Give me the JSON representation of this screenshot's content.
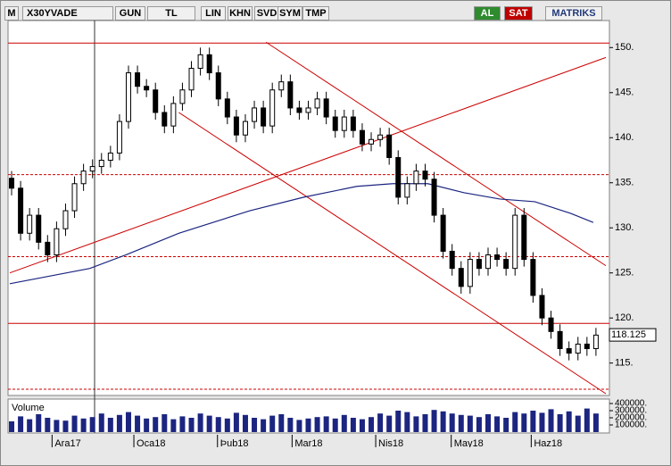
{
  "toolbar": {
    "logo": "M",
    "symbol": "X30YVADE",
    "period": "GUN",
    "currency": "TL",
    "buttons": [
      "LIN",
      "KHN",
      "SVD",
      "SYM",
      "TMP"
    ],
    "buy": "AL",
    "sell": "SAT",
    "brand": "MATRIKS"
  },
  "chart_data": {
    "type": "candlestick",
    "x": [
      0,
      1,
      2,
      3,
      4,
      5,
      6,
      7,
      8,
      9,
      10,
      11,
      12,
      13,
      14,
      15,
      16,
      17,
      18,
      19,
      20,
      21,
      22,
      23,
      24,
      25,
      26,
      27,
      28,
      29,
      30,
      31,
      32,
      33,
      34,
      35,
      36,
      37,
      38,
      39,
      40,
      41,
      42,
      43,
      44,
      45,
      46,
      47,
      48,
      49,
      50,
      51,
      52,
      53,
      54,
      55,
      56,
      57,
      58,
      59,
      60,
      61,
      62,
      63,
      64,
      65
    ],
    "open": [
      135.5,
      134.4,
      129.4,
      131.4,
      128.4,
      127.0,
      129.9,
      131.9,
      134.9,
      136.3,
      136.8,
      137.5,
      138.3,
      141.8,
      147.2,
      145.7,
      145.3,
      142.8,
      141.3,
      143.8,
      145.3,
      147.7,
      149.2,
      147.2,
      144.3,
      142.3,
      140.3,
      141.8,
      143.3,
      141.3,
      145.3,
      146.2,
      143.3,
      142.8,
      143.3,
      144.3,
      142.3,
      140.8,
      142.3,
      140.8,
      139.3,
      139.8,
      140.3,
      137.8,
      133.4,
      134.9,
      136.3,
      135.4,
      131.4,
      127.4,
      125.5,
      123.5,
      126.5,
      125.5,
      127.0,
      126.5,
      125.5,
      131.4,
      126.5,
      122.5,
      120.0,
      118.5,
      116.6,
      116.1,
      117.1,
      116.6
    ],
    "high": [
      136.3,
      135.2,
      132.2,
      132.2,
      129.2,
      130.7,
      132.7,
      135.7,
      137.1,
      137.6,
      138.3,
      139.1,
      142.6,
      148.0,
      148.0,
      146.5,
      146.1,
      143.6,
      144.6,
      146.1,
      148.5,
      150.0,
      150.0,
      148.0,
      145.1,
      143.1,
      142.6,
      144.1,
      144.1,
      146.1,
      147.0,
      147.0,
      144.1,
      144.1,
      145.1,
      145.1,
      143.1,
      143.1,
      143.1,
      141.6,
      140.6,
      141.1,
      141.1,
      138.6,
      135.7,
      137.1,
      137.1,
      136.2,
      132.2,
      128.2,
      126.3,
      127.3,
      127.3,
      127.8,
      127.8,
      127.3,
      132.2,
      132.2,
      127.3,
      123.3,
      120.8,
      119.3,
      117.4,
      117.9,
      117.9,
      118.9
    ],
    "low": [
      133.6,
      128.6,
      128.6,
      127.6,
      126.2,
      126.2,
      129.1,
      131.1,
      134.1,
      135.5,
      136.0,
      136.7,
      137.5,
      141.0,
      144.9,
      144.5,
      142.0,
      140.5,
      140.5,
      143.0,
      144.5,
      146.9,
      146.4,
      143.5,
      141.5,
      139.5,
      139.5,
      141.0,
      140.5,
      140.5,
      144.5,
      142.5,
      142.0,
      142.0,
      142.5,
      141.5,
      140.0,
      140.0,
      140.0,
      138.5,
      138.5,
      139.0,
      137.0,
      132.6,
      132.6,
      134.1,
      134.6,
      130.6,
      126.6,
      124.7,
      122.7,
      122.7,
      124.7,
      124.7,
      125.7,
      124.7,
      124.7,
      125.7,
      121.7,
      119.2,
      117.7,
      115.8,
      115.3,
      115.3,
      115.8,
      115.8
    ],
    "close": [
      134.4,
      129.4,
      131.4,
      128.4,
      127.0,
      129.9,
      131.9,
      134.9,
      136.3,
      136.8,
      137.5,
      138.3,
      141.8,
      147.2,
      145.7,
      145.3,
      142.8,
      141.3,
      143.8,
      145.3,
      147.7,
      149.2,
      147.2,
      144.3,
      142.3,
      140.3,
      141.8,
      143.3,
      141.3,
      145.3,
      146.2,
      143.3,
      142.8,
      143.3,
      144.3,
      142.3,
      140.8,
      142.3,
      140.8,
      139.3,
      139.8,
      140.3,
      137.8,
      133.4,
      134.9,
      136.3,
      135.4,
      131.4,
      127.4,
      125.5,
      123.5,
      126.5,
      125.5,
      127.0,
      126.5,
      125.5,
      131.4,
      126.5,
      122.5,
      120.0,
      118.5,
      116.6,
      116.1,
      117.1,
      116.6,
      118.1
    ],
    "xlim": [
      -0.2,
      66.3
    ],
    "ylim": [
      111.6,
      153
    ],
    "yticks": [
      {
        "value": 115,
        "label": "115."
      },
      {
        "value": 120,
        "label": "120."
      },
      {
        "value": 125,
        "label": "125."
      },
      {
        "value": 130,
        "label": "130."
      },
      {
        "value": 135,
        "label": "135."
      },
      {
        "value": 140,
        "label": "140."
      },
      {
        "value": 145,
        "label": "145."
      },
      {
        "value": 150,
        "label": "150."
      }
    ],
    "xticks": [
      {
        "value": 4.5,
        "label": "Ara17"
      },
      {
        "value": 13.6,
        "label": "Oca18"
      },
      {
        "value": 22.9,
        "label": "Þub18"
      },
      {
        "value": 31.2,
        "label": "Mar18"
      },
      {
        "value": 40.5,
        "label": "Nis18"
      },
      {
        "value": 48.9,
        "label": "May18"
      },
      {
        "value": 57.8,
        "label": "Haz18"
      }
    ],
    "last_price": 118.125,
    "up_color": "#ffffff",
    "down_color": "#000000",
    "moving_average": {
      "color": "#1c2580",
      "x": [
        -0.2,
        8.7,
        12.7,
        18.6,
        26.5,
        32.5,
        38.4,
        42.4,
        46.3,
        50.3,
        54.3,
        58.2,
        62.2,
        64.7
      ],
      "values": [
        123.8,
        125.5,
        127.0,
        129.4,
        131.9,
        133.4,
        134.6,
        134.9,
        134.9,
        133.9,
        133.2,
        132.9,
        131.6,
        130.6
      ]
    },
    "drawing_color": "#cc0000",
    "horizontal_lines": [
      {
        "value": 150.5,
        "dashed": false
      },
      {
        "value": 135.9,
        "dashed": true
      },
      {
        "value": 126.8,
        "dashed": true
      },
      {
        "value": 119.4,
        "dashed": false
      },
      {
        "value": 112.1,
        "dashed": true
      }
    ],
    "trend_lines": [
      {
        "x": [
          -0.2,
          66.1
        ],
        "values": [
          125.0,
          148.9
        ]
      },
      {
        "x": [
          28.3,
          66.1
        ],
        "values": [
          150.6,
          125.8
        ]
      },
      {
        "x": [
          18.6,
          66.1
        ],
        "values": [
          142.8,
          111.6
        ]
      }
    ],
    "volume": {
      "title": "Volume",
      "color": "#1c2580",
      "ylim": [
        0,
        440000
      ],
      "yticks": [
        {
          "value": 100000,
          "label": "100000."
        },
        {
          "value": 200000,
          "label": "200000."
        },
        {
          "value": 300000,
          "label": "300000."
        },
        {
          "value": 400000,
          "label": "400000."
        }
      ],
      "values": [
        150000,
        220000,
        180000,
        250000,
        200000,
        170000,
        160000,
        230000,
        190000,
        210000,
        260000,
        200000,
        240000,
        280000,
        230000,
        190000,
        210000,
        250000,
        180000,
        220000,
        200000,
        260000,
        230000,
        210000,
        190000,
        270000,
        240000,
        200000,
        180000,
        230000,
        250000,
        200000,
        170000,
        190000,
        210000,
        220000,
        190000,
        240000,
        200000,
        180000,
        210000,
        260000,
        230000,
        300000,
        280000,
        220000,
        250000,
        310000,
        290000,
        260000,
        240000,
        230000,
        210000,
        250000,
        220000,
        200000,
        280000,
        260000,
        300000,
        270000,
        320000,
        250000,
        290000,
        230000,
        330000,
        260000
      ]
    }
  }
}
